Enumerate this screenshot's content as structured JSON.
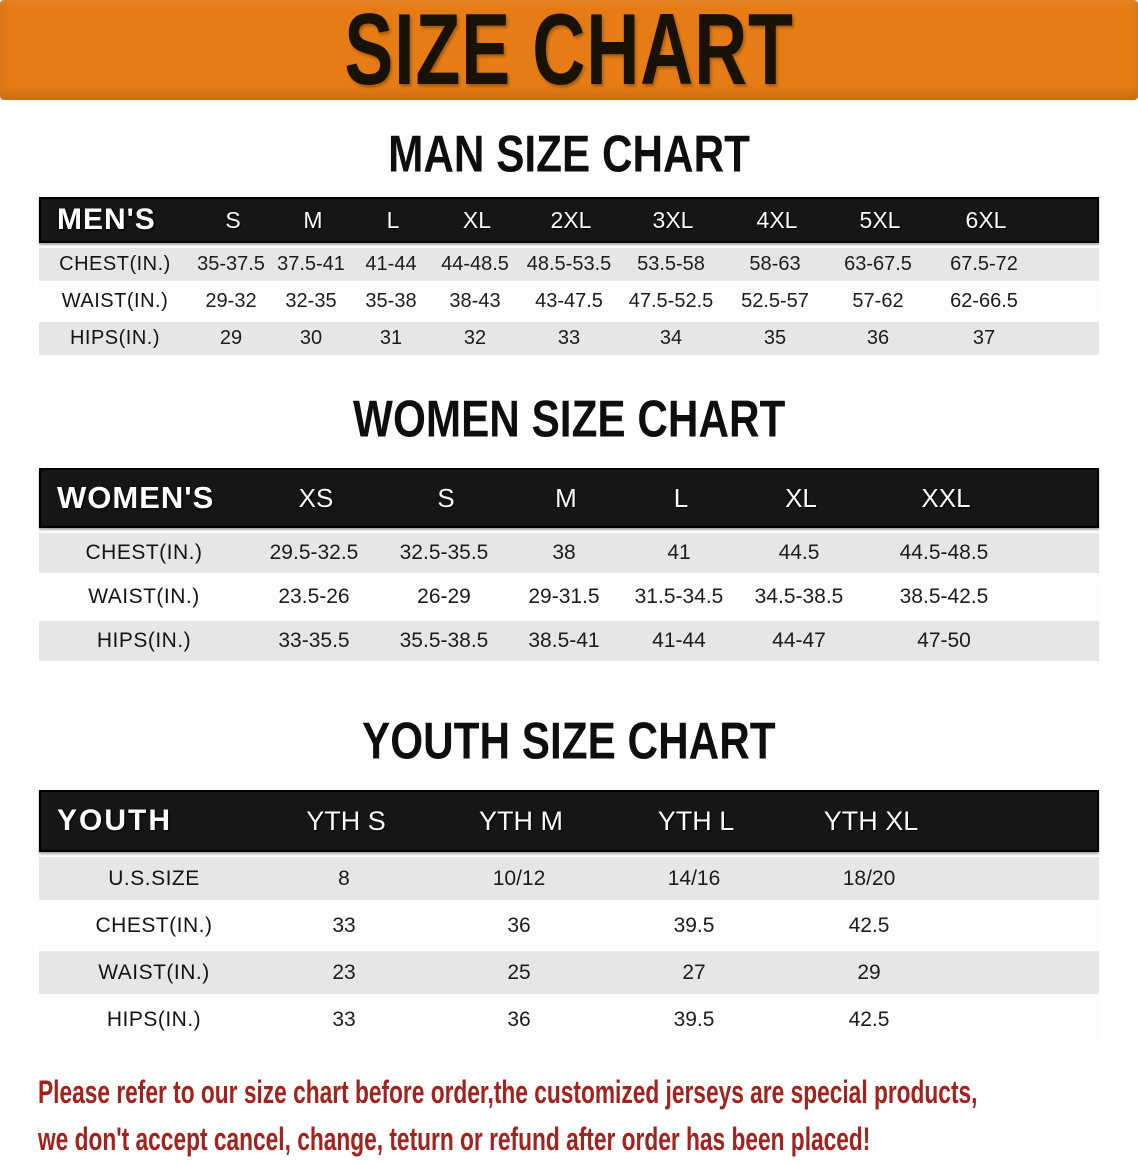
{
  "banner": {
    "title": "SIZE CHART",
    "bg_color": "#E67C15"
  },
  "colors": {
    "header_bar_bg": "#161616",
    "row_stripe": "#E6E6E6",
    "disclaimer_red": "#A2231D"
  },
  "man_section": {
    "heading": "MAN SIZE CHART",
    "table": {
      "label": "MEN'S",
      "columns": [
        "S",
        "M",
        "L",
        "XL",
        "2XL",
        "3XL",
        "4XL",
        "5XL",
        "6XL"
      ],
      "rows": [
        {
          "label": "CHEST(IN.)",
          "values": [
            "35-37.5",
            "37.5-41",
            "41-44",
            "44-48.5",
            "48.5-53.5",
            "53.5-58",
            "58-63",
            "63-67.5",
            "67.5-72"
          ]
        },
        {
          "label": "WAIST(IN.)",
          "values": [
            "29-32",
            "32-35",
            "35-38",
            "38-43",
            "43-47.5",
            "47.5-52.5",
            "52.5-57",
            "57-62",
            "62-66.5"
          ]
        },
        {
          "label": "HIPS(IN.)",
          "values": [
            "29",
            "30",
            "31",
            "32",
            "33",
            "34",
            "35",
            "36",
            "37"
          ]
        }
      ]
    }
  },
  "women_section": {
    "heading": "WOMEN SIZE CHART",
    "table": {
      "label": "WOMEN'S",
      "columns": [
        "XS",
        "S",
        "M",
        "L",
        "XL",
        "XXL"
      ],
      "rows": [
        {
          "label": "CHEST(IN.)",
          "values": [
            "29.5-32.5",
            "32.5-35.5",
            "38",
            "41",
            "44.5",
            "44.5-48.5"
          ]
        },
        {
          "label": "WAIST(IN.)",
          "values": [
            "23.5-26",
            "26-29",
            "29-31.5",
            "31.5-34.5",
            "34.5-38.5",
            "38.5-42.5"
          ]
        },
        {
          "label": "HIPS(IN.)",
          "values": [
            "33-35.5",
            "35.5-38.5",
            "38.5-41",
            "41-44",
            "44-47",
            "47-50"
          ]
        }
      ]
    }
  },
  "youth_section": {
    "heading": "YOUTH SIZE CHART",
    "table": {
      "label": "YOUTH",
      "columns": [
        "YTH S",
        "YTH M",
        "YTH L",
        "YTH XL"
      ],
      "rows": [
        {
          "label": "U.S.SIZE",
          "values": [
            "8",
            "10/12",
            "14/16",
            "18/20"
          ]
        },
        {
          "label": "CHEST(IN.)",
          "values": [
            "33",
            "36",
            "39.5",
            "42.5"
          ]
        },
        {
          "label": "WAIST(IN.)",
          "values": [
            "23",
            "25",
            "27",
            "29"
          ]
        },
        {
          "label": "HIPS(IN.)",
          "values": [
            "33",
            "36",
            "39.5",
            "42.5"
          ]
        }
      ]
    }
  },
  "disclaimer": {
    "line1": "Please refer to our size chart before order,the customized jerseys are special products,",
    "line2": "we don't accept cancel, change, teturn or refund after order has been placed!"
  }
}
